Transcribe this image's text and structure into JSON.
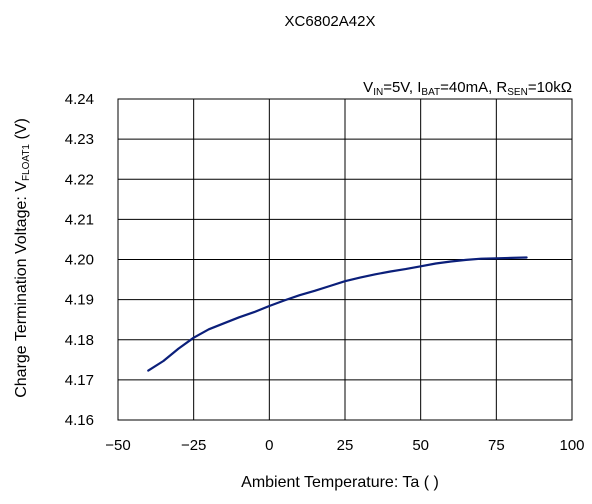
{
  "chart_data": {
    "type": "line",
    "title": "XC6802A42X",
    "condition": {
      "parts": [
        {
          "t": "V"
        },
        {
          "t": "IN",
          "sub": true
        },
        {
          "t": "=5V, I"
        },
        {
          "t": "BAT",
          "sub": true
        },
        {
          "t": "=40mA, R"
        },
        {
          "t": "SEN",
          "sub": true
        },
        {
          "t": "=10kΩ"
        }
      ]
    },
    "xlabel": "Ambient Temperature: Ta (   )",
    "ylabel": {
      "parts": [
        {
          "t": "Charge Termination Voltage: V"
        },
        {
          "t": "FLOAT1",
          "sub": true
        },
        {
          "t": " (V)"
        }
      ]
    },
    "xlim": [
      -50,
      100
    ],
    "ylim": [
      4.16,
      4.24
    ],
    "xticks": [
      -50,
      -25,
      0,
      25,
      50,
      75,
      100
    ],
    "xtick_labels": [
      "−50",
      "−25",
      "0",
      "25",
      "50",
      "75",
      "100"
    ],
    "yticks": [
      4.16,
      4.17,
      4.18,
      4.19,
      4.2,
      4.21,
      4.22,
      4.23,
      4.24
    ],
    "ytick_labels": [
      "4.16",
      "4.17",
      "4.18",
      "4.19",
      "4.20",
      "4.21",
      "4.22",
      "4.23",
      "4.24"
    ],
    "grid": true,
    "series": [
      {
        "color": "#0b1f7a",
        "x": [
          -40,
          -35,
          -30,
          -25,
          -20,
          -15,
          -10,
          -5,
          0,
          5,
          10,
          15,
          20,
          25,
          30,
          35,
          40,
          45,
          50,
          55,
          60,
          65,
          70,
          75,
          80,
          85
        ],
        "y": [
          4.1723,
          4.1747,
          4.1778,
          4.1805,
          4.1826,
          4.1841,
          4.1856,
          4.1869,
          4.1884,
          4.1898,
          4.1911,
          4.1922,
          4.1934,
          4.1946,
          4.1955,
          4.1963,
          4.197,
          4.1976,
          4.1983,
          4.199,
          4.1995,
          4.1999,
          4.2002,
          4.2003,
          4.2004,
          4.2005
        ]
      }
    ]
  }
}
